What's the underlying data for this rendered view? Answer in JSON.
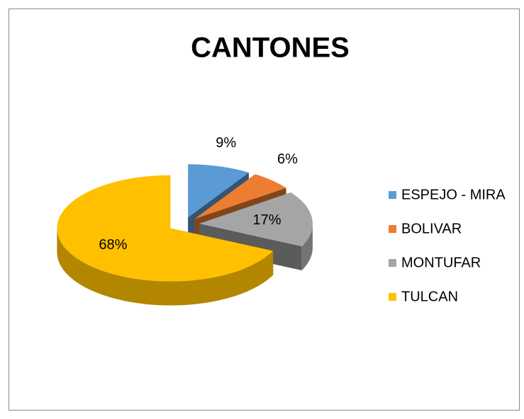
{
  "chart_data": {
    "type": "pie",
    "title": "CANTONES",
    "categories": [
      "ESPEJO - MIRA",
      "BOLIVAR",
      "MONTUFAR",
      "TULCAN"
    ],
    "values": [
      9,
      6,
      17,
      68
    ],
    "value_labels": [
      "9%",
      "6%",
      "17%",
      "68%"
    ],
    "colors": [
      "#5b9bd5",
      "#ed7d31",
      "#a5a5a5",
      "#ffc000"
    ],
    "legend": "right"
  }
}
